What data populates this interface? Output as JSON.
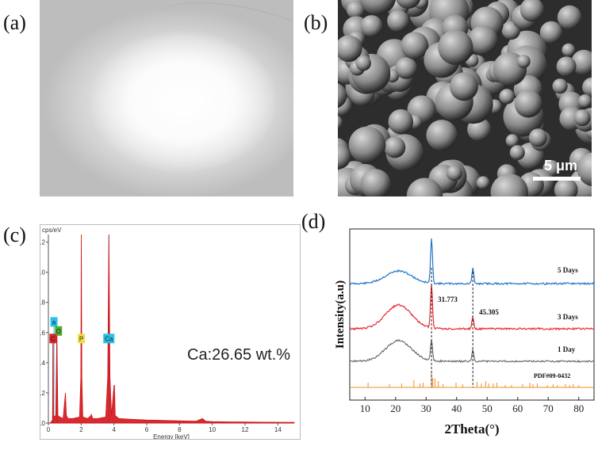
{
  "panels": {
    "a": {
      "label": "(a)"
    },
    "b": {
      "label": "(b)",
      "scale_bar": "5 μm"
    },
    "c": {
      "label": "(c)"
    },
    "d": {
      "label": "(d)"
    }
  },
  "chart_data": [
    {
      "type": "line",
      "panel": "(c)",
      "ylabel_top": "cps/eV",
      "xlabel": "Energy [keV]",
      "xlim": [
        0,
        15
      ],
      "ylim": [
        0,
        1.25
      ],
      "xticks": [
        "0",
        "2",
        "4",
        "6",
        "8",
        "10",
        "12",
        "14"
      ],
      "yticks": [
        "0.0",
        "0.2",
        "0.4",
        "0.6",
        "0.8",
        "1.0",
        "1.2"
      ],
      "annotation": "Ca:26.65 wt.%",
      "peaks": [
        {
          "element": "C",
          "x": 0.28,
          "y": 0.55,
          "color": "#e0232a"
        },
        {
          "element": "O",
          "x": 0.52,
          "y": 0.6,
          "color": "#4caf2f"
        },
        {
          "element": "Ca",
          "x": 0.34,
          "y": 0.65,
          "color": "#25c3e6",
          "label": "a"
        },
        {
          "element": "P",
          "x": 2.01,
          "y": 1.25,
          "color": "#f0e040"
        },
        {
          "element": "Ca",
          "x": 3.69,
          "y": 1.25,
          "color": "#25c3e6"
        }
      ],
      "series": [
        {
          "color": "#d4141b",
          "x": [
            0.1,
            0.25,
            0.28,
            0.31,
            0.45,
            0.52,
            0.58,
            0.7,
            0.9,
            1.04,
            1.1,
            1.2,
            1.5,
            1.9,
            1.98,
            2.01,
            2.04,
            2.1,
            2.4,
            2.6,
            2.62,
            2.7,
            3.0,
            3.5,
            3.62,
            3.69,
            3.76,
            3.85,
            4.0,
            4.03,
            4.08,
            4.3,
            5,
            6,
            7,
            8,
            9,
            9.4,
            9.6,
            10,
            11,
            12,
            13,
            14,
            15
          ],
          "y": [
            0,
            0.02,
            0.55,
            0.04,
            0.05,
            0.6,
            0.05,
            0.04,
            0.03,
            0.2,
            0.05,
            0.03,
            0.03,
            0.04,
            0.3,
            1.25,
            0.3,
            0.04,
            0.03,
            0.05,
            0.06,
            0.03,
            0.03,
            0.04,
            0.3,
            1.25,
            0.3,
            0.05,
            0.25,
            0.25,
            0.05,
            0.03,
            0.025,
            0.02,
            0.018,
            0.015,
            0.012,
            0.03,
            0.012,
            0.01,
            0.008,
            0.007,
            0.006,
            0.005,
            0.004
          ]
        }
      ]
    },
    {
      "type": "line",
      "panel": "(d)",
      "xlabel": "2Theta(°)",
      "ylabel": "Intensity(a.u)",
      "xlim": [
        5,
        85
      ],
      "xticks": [
        10,
        20,
        30,
        40,
        50,
        60,
        70,
        80
      ],
      "peak_labels": [
        {
          "text": "31.773",
          "x": 31.773
        },
        {
          "text": "45.305",
          "x": 45.305
        }
      ],
      "series": [
        {
          "name": "5 Days",
          "color": "#1f77c9"
        },
        {
          "name": "3 Days",
          "color": "#e8282f"
        },
        {
          "name": "1 Day",
          "color": "#6e6e6e"
        },
        {
          "name": "PDF#09-0432",
          "color": "#f28c1e"
        }
      ]
    }
  ]
}
